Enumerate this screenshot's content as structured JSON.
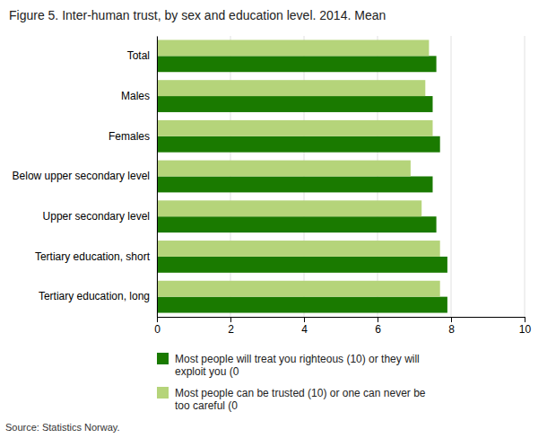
{
  "chart_data": {
    "type": "bar",
    "orientation": "horizontal",
    "title": "Figure 5. Inter-human trust, by sex and education level. 2014. Mean",
    "categories": [
      "Total",
      "Males",
      "Females",
      "Below upper secondary level",
      "Upper secondary level",
      "Tertiary education, short",
      "Tertiary education, long"
    ],
    "series": [
      {
        "name": "Most people will treat you righteous (10) or they will\nexploit you (0",
        "color": "#1a7a00",
        "values": [
          7.6,
          7.5,
          7.7,
          7.5,
          7.6,
          7.9,
          7.9
        ]
      },
      {
        "name": "Most people can be trusted (10) or one can never be\ntoo careful (0",
        "color": "#b5d47a",
        "values": [
          7.4,
          7.3,
          7.5,
          6.9,
          7.2,
          7.7,
          7.7
        ]
      }
    ],
    "xlim": [
      0,
      10
    ],
    "xticks": [
      0,
      2,
      4,
      6,
      8,
      10
    ],
    "grid": true,
    "legend": "bottom",
    "annotations": [
      "Source: Statistics Norway."
    ]
  }
}
